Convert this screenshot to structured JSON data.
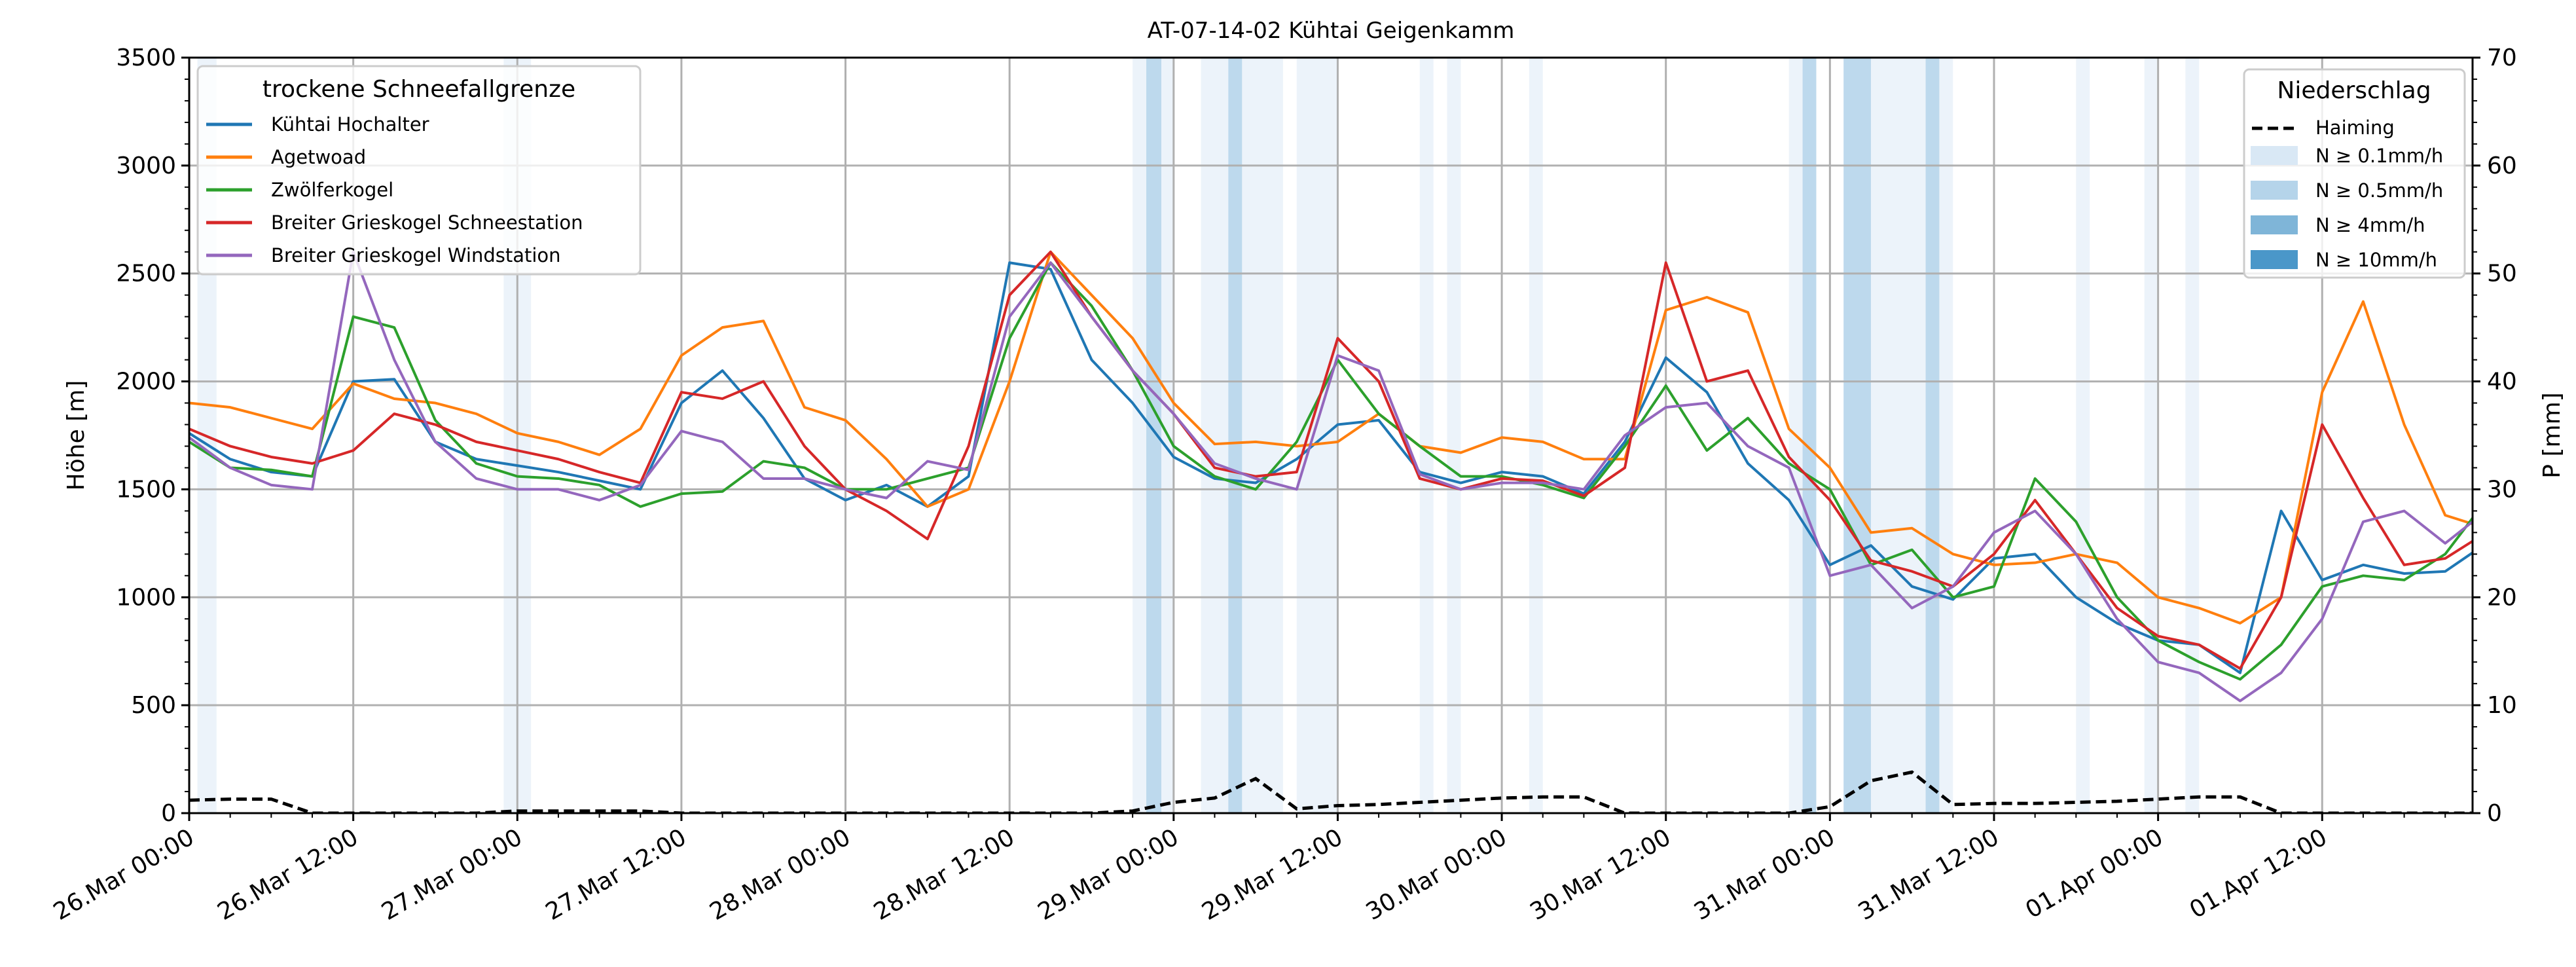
{
  "chart_data": {
    "type": "line",
    "title": "AT-07-14-02 Kühtai Geigenkamm",
    "ylabel": "Höhe [m]",
    "ylabel_right": "P [mm]",
    "ylim": [
      0,
      3500
    ],
    "ylim_right": [
      0,
      70
    ],
    "yticks": [
      0,
      500,
      1000,
      1500,
      2000,
      2500,
      3000,
      3500
    ],
    "yticks_right": [
      0,
      10,
      20,
      30,
      40,
      50,
      60,
      70
    ],
    "x_unit": "hours since 26.Mar 00:00",
    "xlim": [
      0,
      167
    ],
    "xticks": [
      {
        "h": 0,
        "label": "26.Mar 00:00"
      },
      {
        "h": 12,
        "label": "26.Mar 12:00"
      },
      {
        "h": 24,
        "label": "27.Mar 00:00"
      },
      {
        "h": 36,
        "label": "27.Mar 12:00"
      },
      {
        "h": 48,
        "label": "28.Mar 00:00"
      },
      {
        "h": 60,
        "label": "28.Mar 12:00"
      },
      {
        "h": 72,
        "label": "29.Mar 00:00"
      },
      {
        "h": 84,
        "label": "29.Mar 12:00"
      },
      {
        "h": 96,
        "label": "30.Mar 00:00"
      },
      {
        "h": 108,
        "label": "30.Mar 12:00"
      },
      {
        "h": 120,
        "label": "31.Mar 00:00"
      },
      {
        "h": 132,
        "label": "31.Mar 12:00"
      },
      {
        "h": 144,
        "label": "01.Apr 00:00"
      },
      {
        "h": 156,
        "label": "01.Apr 12:00"
      }
    ],
    "grid": true,
    "x": [
      0,
      3,
      6,
      9,
      12,
      15,
      18,
      21,
      24,
      27,
      30,
      33,
      36,
      39,
      42,
      45,
      48,
      51,
      54,
      57,
      60,
      63,
      66,
      69,
      72,
      75,
      78,
      81,
      84,
      87,
      90,
      93,
      96,
      99,
      102,
      105,
      108,
      111,
      114,
      117,
      120,
      123,
      126,
      129,
      132,
      135,
      138,
      141,
      144,
      147,
      150,
      153,
      156,
      159,
      162,
      165,
      168
    ],
    "legend_left": {
      "title": "trockene Schneefallgrenze",
      "placement": "top-left"
    },
    "series": [
      {
        "name": "Kühtai Hochalter",
        "color": "#1f77b4",
        "values": [
          1760,
          1640,
          1580,
          1560,
          2000,
          2010,
          1720,
          1640,
          1610,
          1580,
          1540,
          1500,
          1900,
          2050,
          1830,
          1550,
          1450,
          1520,
          1420,
          1560,
          2550,
          2520,
          2100,
          1900,
          1650,
          1550,
          1530,
          1640,
          1800,
          1820,
          1580,
          1530,
          1580,
          1560,
          1480,
          1720,
          2110,
          1950,
          1620,
          1450,
          1150,
          1240,
          1050,
          990,
          1180,
          1200,
          1000,
          880,
          800,
          780,
          650,
          1400,
          1080,
          1150,
          1110,
          1120,
          1250
        ]
      },
      {
        "name": "Agetwoad",
        "color": "#ff7f0e",
        "values": [
          1900,
          1880,
          1830,
          1780,
          1990,
          1920,
          1900,
          1850,
          1760,
          1720,
          1660,
          1780,
          2120,
          2250,
          2280,
          1880,
          1820,
          1640,
          1420,
          1500,
          2000,
          2600,
          2400,
          2200,
          1900,
          1710,
          1720,
          1700,
          1720,
          1850,
          1700,
          1670,
          1740,
          1720,
          1640,
          1640,
          2330,
          2390,
          2320,
          1780,
          1600,
          1300,
          1320,
          1200,
          1150,
          1160,
          1200,
          1160,
          1000,
          950,
          880,
          1000,
          1950,
          2370,
          1800,
          1380,
          1320
        ]
      },
      {
        "name": "Zwölferkogel",
        "color": "#2ca02c",
        "values": [
          1720,
          1600,
          1590,
          1560,
          2300,
          2250,
          1820,
          1620,
          1560,
          1550,
          1520,
          1420,
          1480,
          1490,
          1630,
          1600,
          1500,
          1500,
          1550,
          1600,
          2200,
          2550,
          2350,
          2050,
          1700,
          1560,
          1500,
          1720,
          2100,
          1850,
          1700,
          1560,
          1560,
          1520,
          1460,
          1700,
          1980,
          1680,
          1830,
          1620,
          1500,
          1150,
          1220,
          1000,
          1050,
          1550,
          1350,
          1000,
          800,
          700,
          620,
          780,
          1050,
          1100,
          1080,
          1200,
          1450
        ]
      },
      {
        "name": "Breiter Grieskogel Schneestation",
        "color": "#d62728",
        "values": [
          1780,
          1700,
          1650,
          1620,
          1680,
          1850,
          1800,
          1720,
          1680,
          1640,
          1580,
          1530,
          1950,
          1920,
          2000,
          1700,
          1500,
          1400,
          1270,
          1700,
          2400,
          2600,
          2300,
          2050,
          1850,
          1600,
          1560,
          1580,
          2200,
          2000,
          1550,
          1500,
          1550,
          1540,
          1470,
          1600,
          2550,
          2000,
          2050,
          1650,
          1450,
          1170,
          1120,
          1050,
          1200,
          1450,
          1200,
          950,
          820,
          780,
          670,
          1000,
          1800,
          1460,
          1150,
          1180,
          1300
        ]
      },
      {
        "name": "Breiter Grieskogel Windstation",
        "color": "#9467bd",
        "values": [
          1740,
          1600,
          1520,
          1500,
          2600,
          2100,
          1720,
          1550,
          1500,
          1500,
          1450,
          1520,
          1770,
          1720,
          1550,
          1550,
          1500,
          1460,
          1630,
          1590,
          2300,
          2550,
          2300,
          2050,
          1850,
          1620,
          1550,
          1500,
          2120,
          2050,
          1570,
          1500,
          1530,
          1530,
          1500,
          1750,
          1880,
          1900,
          1700,
          1600,
          1100,
          1150,
          950,
          1050,
          1300,
          1400,
          1200,
          900,
          700,
          650,
          520,
          650,
          900,
          1350,
          1400,
          1250,
          1400
        ]
      }
    ],
    "precip": {
      "legend_title": "Niederschlag",
      "placement": "top-right",
      "line": {
        "name": "Haiming",
        "color": "#000000",
        "values": [
          1.2,
          1.3,
          1.3,
          0,
          0,
          0,
          0,
          0,
          0.2,
          0.2,
          0.2,
          0.2,
          0,
          0,
          0,
          0,
          0,
          0,
          0,
          0,
          0,
          0,
          0,
          0.2,
          1.0,
          1.4,
          3.2,
          0.4,
          0.7,
          0.8,
          1.0,
          1.2,
          1.4,
          1.5,
          1.5,
          0,
          0,
          0,
          0,
          0,
          0.6,
          3.0,
          3.8,
          0.8,
          0.9,
          0.9,
          1.0,
          1.1,
          1.3,
          1.5,
          1.5,
          0,
          0,
          0,
          0,
          0,
          0
        ]
      },
      "levels": [
        {
          "label": "N ≥ 0.1mm/h",
          "color": "#d9e8f5"
        },
        {
          "label": "N ≥ 0.5mm/h",
          "color": "#b5d4ea"
        },
        {
          "label": "N ≥ 4mm/h",
          "color": "#7fb5d8"
        },
        {
          "label": "N ≥ 10mm/h",
          "color": "#4a97c9"
        }
      ],
      "bands": [
        {
          "start": 0.6,
          "end": 2,
          "level": 0
        },
        {
          "start": 23,
          "end": 25,
          "level": 0
        },
        {
          "start": 69,
          "end": 72,
          "level": 0
        },
        {
          "start": 70,
          "end": 71.1,
          "level": 1
        },
        {
          "start": 74,
          "end": 80,
          "level": 0
        },
        {
          "start": 76,
          "end": 77,
          "level": 1
        },
        {
          "start": 81,
          "end": 84,
          "level": 0
        },
        {
          "start": 90,
          "end": 91,
          "level": 0
        },
        {
          "start": 92,
          "end": 93,
          "level": 0
        },
        {
          "start": 98,
          "end": 99,
          "level": 0
        },
        {
          "start": 117,
          "end": 119,
          "level": 0
        },
        {
          "start": 118,
          "end": 119,
          "level": 1
        },
        {
          "start": 121,
          "end": 129,
          "level": 0
        },
        {
          "start": 121,
          "end": 123,
          "level": 1
        },
        {
          "start": 127,
          "end": 128,
          "level": 1
        },
        {
          "start": 138,
          "end": 139,
          "level": 0
        },
        {
          "start": 143,
          "end": 144,
          "level": 0
        },
        {
          "start": 146,
          "end": 147,
          "level": 0
        }
      ]
    }
  }
}
